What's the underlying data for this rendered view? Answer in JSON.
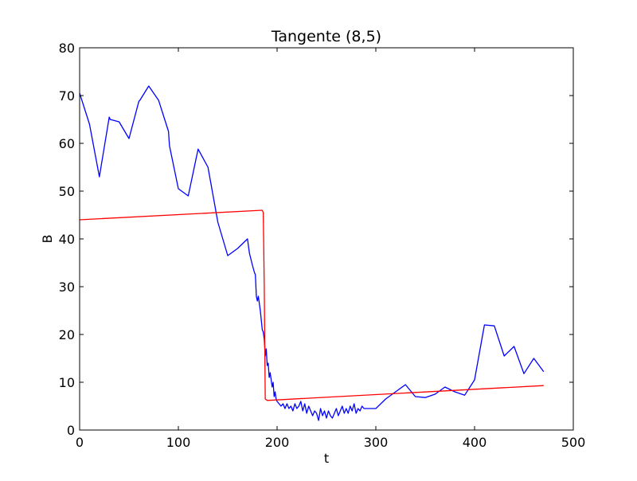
{
  "chart_data": {
    "type": "line",
    "title": "Tangente (8,5)",
    "xlabel": "t",
    "ylabel": "B",
    "xlim": [
      0,
      500
    ],
    "ylim": [
      0,
      80
    ],
    "xticks": [
      0,
      100,
      200,
      300,
      400,
      500
    ],
    "yticks": [
      0,
      10,
      20,
      30,
      40,
      50,
      60,
      70,
      80
    ],
    "grid": false,
    "series": [
      {
        "color": "#0000ff",
        "x": [
          0,
          10,
          20,
          30,
          31,
          40,
          50,
          60,
          61,
          70,
          80,
          90,
          91,
          100,
          110,
          120,
          130,
          140,
          150,
          160,
          170,
          172,
          175,
          177,
          178,
          179,
          180,
          181,
          182,
          183,
          184,
          185,
          186,
          187,
          188,
          189,
          190,
          191,
          192,
          193,
          194,
          195,
          196,
          197,
          198,
          199,
          200,
          202,
          204,
          206,
          208,
          210,
          212,
          214,
          216,
          218,
          220,
          222,
          224,
          226,
          228,
          230,
          232,
          234,
          236,
          238,
          240,
          242,
          244,
          246,
          248,
          250,
          252,
          254,
          256,
          258,
          260,
          262,
          264,
          266,
          268,
          270,
          272,
          274,
          276,
          278,
          280,
          282,
          284,
          286,
          288,
          290,
          300,
          310,
          320,
          330,
          340,
          350,
          360,
          370,
          380,
          390,
          400,
          410,
          420,
          430,
          440,
          450,
          460,
          470
        ],
        "y": [
          70.5,
          64,
          53,
          65.5,
          65,
          64.5,
          61,
          68.8,
          69,
          72,
          69,
          62.5,
          59.5,
          50.5,
          49,
          58.8,
          55,
          43.5,
          36.5,
          38,
          40,
          37,
          34.5,
          33,
          32.5,
          28,
          27,
          28,
          26.5,
          25,
          23,
          21,
          20.5,
          19,
          15.5,
          17,
          13.5,
          14,
          11,
          12,
          10.5,
          9,
          10,
          7,
          8,
          6.5,
          6,
          5.5,
          5,
          5.5,
          4.5,
          5.5,
          4.5,
          5,
          4,
          5.5,
          4.5,
          5,
          6,
          4,
          5.5,
          3.5,
          5,
          4,
          3,
          4,
          3.5,
          2,
          4.5,
          3,
          4,
          2.5,
          4,
          3,
          2.5,
          3.5,
          4.5,
          3,
          4,
          5,
          3.5,
          4.5,
          3.5,
          5,
          4,
          5.5,
          3.5,
          4.5,
          4,
          5,
          4.5,
          4.5,
          4.5,
          6.5,
          8,
          9.5,
          7,
          6.8,
          7.5,
          9,
          8,
          7.3,
          10.5,
          22,
          21.8,
          15.5,
          17.5,
          11.8,
          15,
          12.2
        ]
      },
      {
        "color": "#ff0000",
        "x": [
          0,
          185,
          186,
          187,
          188,
          190,
          470
        ],
        "y": [
          44,
          46,
          45.5,
          30,
          6.5,
          6.2,
          9.3
        ]
      }
    ]
  }
}
